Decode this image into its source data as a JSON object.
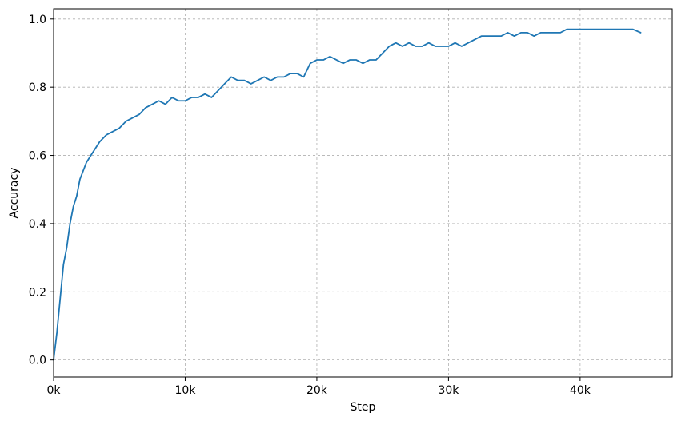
{
  "chart_data": {
    "type": "line",
    "title": "",
    "xlabel": "Step",
    "ylabel": "Accuracy",
    "xlim": [
      0,
      47000
    ],
    "ylim": [
      -0.05,
      1.03
    ],
    "grid": true,
    "x_ticks": [
      {
        "value": 0,
        "label": "0k"
      },
      {
        "value": 10000,
        "label": "10k"
      },
      {
        "value": 20000,
        "label": "20k"
      },
      {
        "value": 30000,
        "label": "30k"
      },
      {
        "value": 40000,
        "label": "40k"
      }
    ],
    "y_ticks": [
      {
        "value": 0.0,
        "label": "0.0"
      },
      {
        "value": 0.2,
        "label": "0.2"
      },
      {
        "value": 0.4,
        "label": "0.4"
      },
      {
        "value": 0.6,
        "label": "0.6"
      },
      {
        "value": 0.8,
        "label": "0.8"
      },
      {
        "value": 1.0,
        "label": "1.0"
      }
    ],
    "series": [
      {
        "color": "#1f77b4",
        "x": [
          0,
          250,
          500,
          750,
          1000,
          1250,
          1500,
          1750,
          2000,
          2500,
          3000,
          3500,
          4000,
          4500,
          5000,
          5500,
          6000,
          6500,
          7000,
          7500,
          8000,
          8500,
          9000,
          9500,
          10000,
          10500,
          11000,
          11500,
          12000,
          12500,
          13000,
          13500,
          14000,
          14500,
          15000,
          15500,
          16000,
          16500,
          17000,
          17500,
          18000,
          18500,
          19000,
          19500,
          20000,
          20500,
          21000,
          21500,
          22000,
          22500,
          23000,
          23500,
          24000,
          24500,
          25000,
          25500,
          26000,
          26500,
          27000,
          27500,
          28000,
          28500,
          29000,
          29500,
          30000,
          30500,
          31000,
          31500,
          32000,
          32500,
          33000,
          33500,
          34000,
          34500,
          35000,
          35500,
          36000,
          36500,
          37000,
          37500,
          38000,
          38500,
          39000,
          39500,
          40000,
          40500,
          41000,
          41500,
          42000,
          42500,
          43000,
          43500,
          44000,
          44600
        ],
        "y": [
          0.0,
          0.08,
          0.18,
          0.28,
          0.33,
          0.4,
          0.45,
          0.48,
          0.53,
          0.58,
          0.61,
          0.64,
          0.66,
          0.67,
          0.68,
          0.7,
          0.71,
          0.72,
          0.74,
          0.75,
          0.76,
          0.75,
          0.77,
          0.76,
          0.76,
          0.77,
          0.77,
          0.78,
          0.77,
          0.79,
          0.81,
          0.83,
          0.82,
          0.82,
          0.81,
          0.82,
          0.83,
          0.82,
          0.83,
          0.83,
          0.84,
          0.84,
          0.83,
          0.87,
          0.88,
          0.88,
          0.89,
          0.88,
          0.87,
          0.88,
          0.88,
          0.87,
          0.88,
          0.88,
          0.9,
          0.92,
          0.93,
          0.92,
          0.93,
          0.92,
          0.92,
          0.93,
          0.92,
          0.92,
          0.92,
          0.93,
          0.92,
          0.93,
          0.94,
          0.95,
          0.95,
          0.95,
          0.95,
          0.96,
          0.95,
          0.96,
          0.96,
          0.95,
          0.96,
          0.96,
          0.96,
          0.96,
          0.97,
          0.97,
          0.97,
          0.97,
          0.97,
          0.97,
          0.97,
          0.97,
          0.97,
          0.97,
          0.97,
          0.96
        ]
      }
    ]
  }
}
